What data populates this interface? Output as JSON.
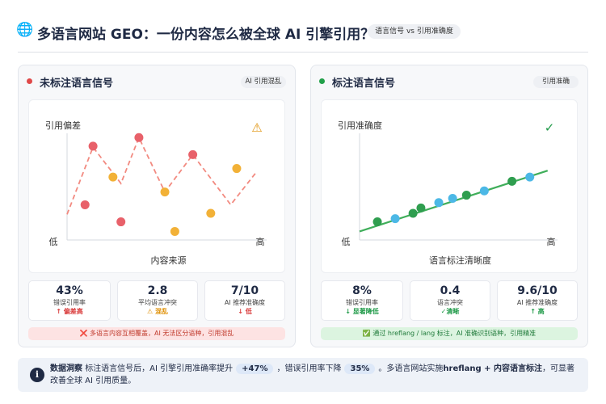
{
  "header": {
    "title": "多语言网站 GEO：一份内容怎么被全球 AI 引擎引用？",
    "badge": "语言信号 vs 引用准确度"
  },
  "panels": [
    {
      "title": "未标注语言信号",
      "badge": "AI 引用混乱",
      "color": "#e04848",
      "stats": [
        {
          "value": "43%",
          "label": "错误引用率",
          "note": "↑ 偏差高",
          "color": "#d93a3a"
        },
        {
          "value": "2.8",
          "label": "平均语言冲突",
          "note": "⚠ 混乱",
          "color": "#e0930c"
        },
        {
          "value": "7/10",
          "label": "AI 推荐准确度",
          "note": "↓ 低",
          "color": "#d93a3a"
        }
      ],
      "footer": "❌ 多语言内容互相覆盖，AI 无法区分语种，引用混乱"
    },
    {
      "title": "标注语言信号",
      "badge": "引用准确",
      "color": "#22a04a",
      "stats": [
        {
          "value": "8%",
          "label": "错误引用率",
          "note": "↓ 显著降低",
          "color": "#1f9a48"
        },
        {
          "value": "0.4",
          "label": "语言冲突",
          "note": "✓清晰",
          "color": "#1f9a48"
        },
        {
          "value": "9.6/10",
          "label": "AI 推荐准确度",
          "note": "↑ 高",
          "color": "#1f9a48"
        }
      ],
      "footer": "✅ 通过 hreflang / lang 标注，AI 准确识别语种，引用精准"
    }
  ],
  "chart_data": [
    {
      "type": "scatter",
      "ylabel": "引用偏差",
      "xlabel": "内容来源",
      "xlim": [
        0,
        100
      ],
      "ylim": [
        0,
        100
      ],
      "xticks": [
        {
          "value": 0,
          "label": "低"
        },
        {
          "value": 100,
          "label": "高"
        }
      ],
      "series": [
        {
          "color": "#f28a80",
          "line": "dashed",
          "x": [
            0,
            13,
            27,
            36,
            49,
            63,
            82,
            95
          ],
          "values": [
            24,
            87,
            53,
            96,
            45,
            80,
            33,
            64
          ]
        },
        {
          "color": "#e8616a",
          "x": [
            9,
            13,
            27,
            36,
            63
          ],
          "values": [
            33,
            88,
            17,
            96,
            80
          ]
        },
        {
          "color": "#f2b137",
          "x": [
            23,
            49,
            54,
            72,
            85
          ],
          "values": [
            59,
            45,
            8,
            25,
            67
          ]
        }
      ]
    },
    {
      "type": "scatter",
      "ylabel": "引用准确度",
      "xlabel": "语言标注清晰度",
      "xlim": [
        0,
        100
      ],
      "ylim": [
        0,
        100
      ],
      "xticks": [
        {
          "value": 0,
          "label": "低"
        },
        {
          "value": 100,
          "label": "高"
        }
      ],
      "series": [
        {
          "color": "#3fae5a",
          "line": "solid",
          "x": [
            0,
            95
          ],
          "values": [
            8,
            65
          ]
        },
        {
          "color": "#2f9e4f",
          "x": [
            9,
            27,
            31,
            54,
            77
          ],
          "values": [
            17,
            25,
            30,
            42,
            55
          ]
        },
        {
          "color": "#4cb8e6",
          "x": [
            18,
            40,
            47,
            63,
            86
          ],
          "values": [
            20,
            35,
            39,
            46,
            59
          ]
        }
      ]
    }
  ],
  "insight": {
    "label": "数据洞察",
    "parts": [
      "标注语言信号后，AI 引擎引用准确率提升",
      "+47%",
      "，错误引用率下降",
      "35%",
      "。多语言网站实施",
      "hreflang + 内容语言标注",
      "，可显著改善全球 AI 引用质量。"
    ]
  }
}
